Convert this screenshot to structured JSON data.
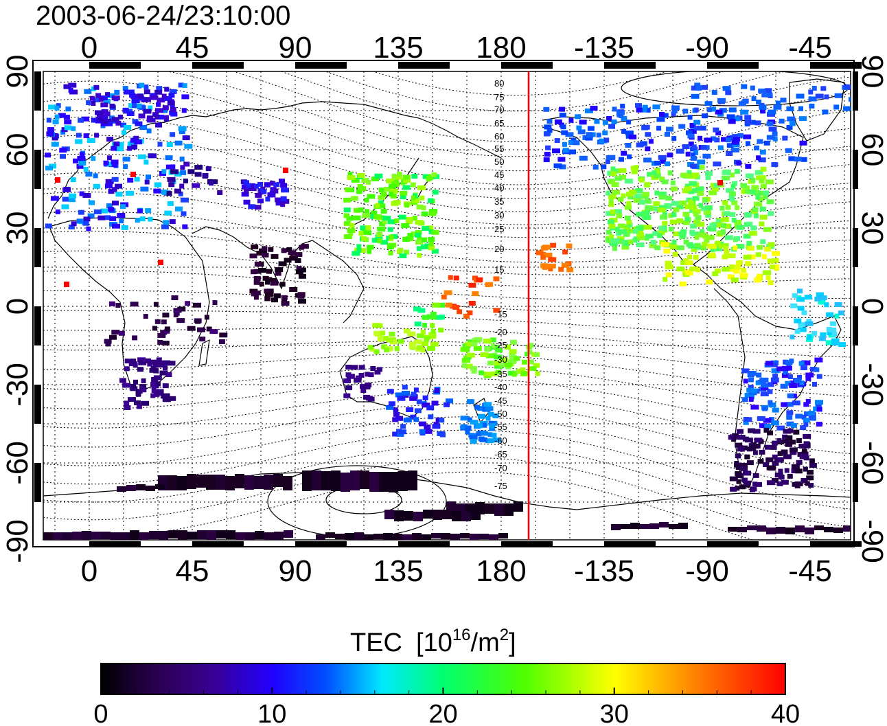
{
  "timestamp": "2003-06-24/23:10:00",
  "x_ticks_top": [
    "0",
    "45",
    "90",
    "135",
    "180",
    "-135",
    "-90",
    "-45"
  ],
  "x_ticks_bottom": [
    "0",
    "45",
    "90",
    "135",
    "180",
    "-135",
    "-90",
    "-45"
  ],
  "y_ticks_left": [
    "90",
    "60",
    "30",
    "0",
    "-30",
    "-60",
    "-90"
  ],
  "y_ticks_right": [
    "90",
    "60",
    "30",
    "0",
    "-30",
    "-60",
    "-90"
  ],
  "contour_labels": [
    "80",
    "75",
    "70",
    "65",
    "60",
    "55",
    "50",
    "45",
    "40",
    "35",
    "30",
    "25",
    "20",
    "15",
    "-15",
    "-20",
    "-25",
    "-30",
    "-35",
    "-40",
    "-45",
    "-50",
    "-55",
    "-60",
    "-65",
    "-70",
    "-75"
  ],
  "colorbar": {
    "title_main": "TEC",
    "title_units_base": "[10",
    "title_units_exp": "16",
    "title_units_mid": "/m",
    "title_units_exp2": "2",
    "title_units_end": "]",
    "tick_labels": [
      "0",
      "10",
      "20",
      "30",
      "40"
    ],
    "min": 0,
    "max": 40
  },
  "terminator_longitude": -168,
  "colors": {
    "terminator": "#ff0000",
    "scale": [
      "#000000",
      "#2a0060",
      "#4b00b0",
      "#2000ff",
      "#0060ff",
      "#00e0ff",
      "#00ff60",
      "#40ff00",
      "#ffff00",
      "#ff8000",
      "#ff0000"
    ]
  }
}
